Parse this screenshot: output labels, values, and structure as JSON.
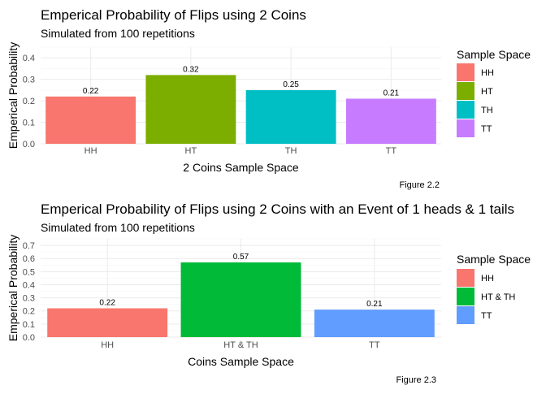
{
  "chart_data": [
    {
      "type": "bar",
      "title": "Emperical Probability of Flips using 2 Coins",
      "subtitle": "Simulated from 100 repetitions",
      "xlabel": "2 Coins Sample Space",
      "ylabel": "Emperical Probability",
      "categories": [
        "HH",
        "HT",
        "TH",
        "TT"
      ],
      "values": [
        0.22,
        0.32,
        0.25,
        0.21
      ],
      "value_labels": [
        "0.22",
        "0.32",
        "0.25",
        "0.21"
      ],
      "colors": [
        "#F8766D",
        "#7CAE00",
        "#00BFC4",
        "#C77CFF"
      ],
      "ylim": [
        0,
        0.45
      ],
      "yticks": [
        0.0,
        0.1,
        0.2,
        0.3,
        0.4
      ],
      "ytick_labels": [
        "0.0",
        "0.1",
        "0.2",
        "0.3",
        "0.4"
      ],
      "legend": {
        "title": "Sample Space",
        "position": "right",
        "labels": [
          "HH",
          "HT",
          "TH",
          "TT"
        ]
      },
      "caption": "Figure 2.2",
      "grid": true
    },
    {
      "type": "bar",
      "title": "Emperical Probability of Flips using 2 Coins with an Event of 1 heads & 1 tails",
      "subtitle": "Simulated from 100 repetitions",
      "xlabel": "Coins Sample Space",
      "ylabel": "Emperical Probability",
      "categories": [
        "HH",
        "HT & TH",
        "TT"
      ],
      "values": [
        0.22,
        0.57,
        0.21
      ],
      "value_labels": [
        "0.22",
        "0.57",
        "0.21"
      ],
      "colors": [
        "#F8766D",
        "#00BA38",
        "#619CFF"
      ],
      "ylim": [
        0,
        0.75
      ],
      "yticks": [
        0.0,
        0.1,
        0.2,
        0.3,
        0.4,
        0.5,
        0.6,
        0.7
      ],
      "ytick_labels": [
        "0.0",
        "0.1",
        "0.2",
        "0.3",
        "0.4",
        "0.5",
        "0.6",
        "0.7"
      ],
      "legend": {
        "title": "Sample Space",
        "position": "right",
        "labels": [
          "HH",
          "HT & TH",
          "TT"
        ]
      },
      "caption": "Figure 2.3",
      "grid": true
    }
  ]
}
